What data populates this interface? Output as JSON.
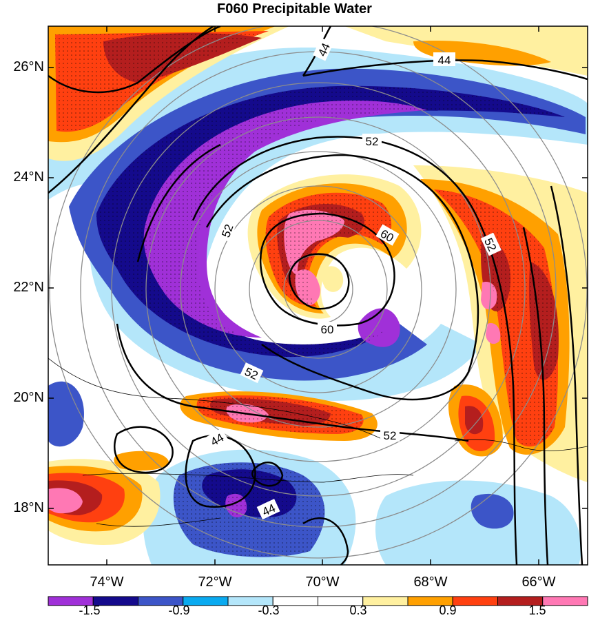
{
  "title": "F060 Precipitable Water",
  "lat_labels": [
    "26°N",
    "24°N",
    "22°N",
    "20°N",
    "18°N"
  ],
  "lon_labels": [
    "74°W",
    "72°W",
    "70°W",
    "68°W",
    "66°W"
  ],
  "contour_labels": [
    "44",
    "44",
    "44",
    "44",
    "52",
    "52",
    "52",
    "52",
    "52",
    "60",
    "60"
  ],
  "colorbar": {
    "colors": [
      "#a030d8",
      "#140a8c",
      "#3c55c8",
      "#0aaaf0",
      "#b4e6fa",
      "#ffffff",
      "#ffffff",
      "#fff0a0",
      "#ffa000",
      "#ff4010",
      "#b41e1e",
      "#ff78b4"
    ],
    "labels": [
      "-1.5",
      "-0.9",
      "-0.3",
      "0.3",
      "0.9",
      "1.5"
    ]
  }
}
